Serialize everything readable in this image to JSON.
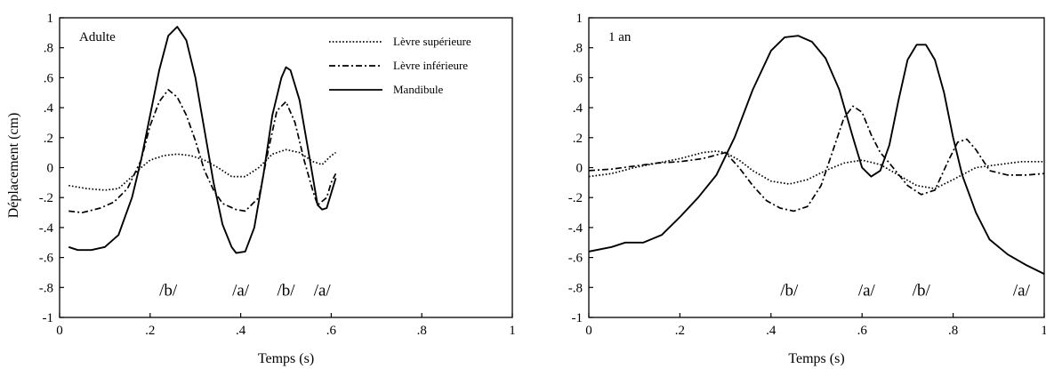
{
  "figure": {
    "ylabel": "Déplacement (cm)"
  },
  "chart_data": [
    {
      "type": "line",
      "panel_label": "Adulte",
      "xlabel": "Temps (s)",
      "ylabel": "Déplacement (cm)",
      "xlim": [
        0,
        1
      ],
      "ylim": [
        -1,
        1
      ],
      "x_ticks": [
        "0",
        ".2",
        ".4",
        ".6",
        ".8",
        "1"
      ],
      "y_ticks": [
        "1",
        ".8",
        ".6",
        ".4",
        ".2",
        "0",
        "-.2",
        "-.4",
        "-.6",
        "-.8",
        "-1"
      ],
      "legend": "top-right",
      "grid": false,
      "series": [
        {
          "name": "Lèvre supérieure",
          "style": "dotted",
          "points": [
            [
              0.02,
              -0.12
            ],
            [
              0.06,
              -0.14
            ],
            [
              0.1,
              -0.15
            ],
            [
              0.13,
              -0.14
            ],
            [
              0.16,
              -0.06
            ],
            [
              0.18,
              0.0
            ],
            [
              0.2,
              0.05
            ],
            [
              0.23,
              0.08
            ],
            [
              0.26,
              0.09
            ],
            [
              0.29,
              0.08
            ],
            [
              0.32,
              0.05
            ],
            [
              0.35,
              0.0
            ],
            [
              0.38,
              -0.06
            ],
            [
              0.41,
              -0.06
            ],
            [
              0.44,
              0.0
            ],
            [
              0.47,
              0.09
            ],
            [
              0.5,
              0.12
            ],
            [
              0.53,
              0.1
            ],
            [
              0.56,
              0.04
            ],
            [
              0.58,
              0.02
            ],
            [
              0.6,
              0.08
            ],
            [
              0.61,
              0.1
            ]
          ]
        },
        {
          "name": "Lèvre inférieure",
          "style": "dash-dot",
          "points": [
            [
              0.02,
              -0.29
            ],
            [
              0.05,
              -0.3
            ],
            [
              0.09,
              -0.27
            ],
            [
              0.12,
              -0.23
            ],
            [
              0.15,
              -0.14
            ],
            [
              0.18,
              0.05
            ],
            [
              0.2,
              0.28
            ],
            [
              0.22,
              0.44
            ],
            [
              0.24,
              0.52
            ],
            [
              0.26,
              0.47
            ],
            [
              0.28,
              0.35
            ],
            [
              0.3,
              0.18
            ],
            [
              0.32,
              -0.02
            ],
            [
              0.34,
              -0.15
            ],
            [
              0.36,
              -0.24
            ],
            [
              0.39,
              -0.28
            ],
            [
              0.41,
              -0.29
            ],
            [
              0.44,
              -0.2
            ],
            [
              0.46,
              0.1
            ],
            [
              0.48,
              0.38
            ],
            [
              0.5,
              0.44
            ],
            [
              0.52,
              0.3
            ],
            [
              0.54,
              0.05
            ],
            [
              0.56,
              -0.16
            ],
            [
              0.57,
              -0.25
            ],
            [
              0.59,
              -0.2
            ],
            [
              0.6,
              -0.1
            ],
            [
              0.61,
              -0.04
            ]
          ]
        },
        {
          "name": "Mandibule",
          "style": "solid",
          "points": [
            [
              0.02,
              -0.53
            ],
            [
              0.04,
              -0.55
            ],
            [
              0.07,
              -0.55
            ],
            [
              0.1,
              -0.53
            ],
            [
              0.13,
              -0.45
            ],
            [
              0.16,
              -0.2
            ],
            [
              0.18,
              0.05
            ],
            [
              0.2,
              0.35
            ],
            [
              0.22,
              0.65
            ],
            [
              0.24,
              0.88
            ],
            [
              0.26,
              0.94
            ],
            [
              0.28,
              0.85
            ],
            [
              0.3,
              0.6
            ],
            [
              0.32,
              0.25
            ],
            [
              0.34,
              -0.1
            ],
            [
              0.36,
              -0.38
            ],
            [
              0.38,
              -0.53
            ],
            [
              0.39,
              -0.57
            ],
            [
              0.41,
              -0.56
            ],
            [
              0.43,
              -0.4
            ],
            [
              0.45,
              -0.05
            ],
            [
              0.47,
              0.35
            ],
            [
              0.49,
              0.6
            ],
            [
              0.5,
              0.67
            ],
            [
              0.51,
              0.65
            ],
            [
              0.53,
              0.45
            ],
            [
              0.55,
              0.1
            ],
            [
              0.57,
              -0.25
            ],
            [
              0.58,
              -0.28
            ],
            [
              0.59,
              -0.27
            ],
            [
              0.61,
              -0.07
            ]
          ]
        }
      ],
      "annotations": [
        {
          "text": "/b/",
          "x": 0.24,
          "y": -0.82
        },
        {
          "text": "/a/",
          "x": 0.4,
          "y": -0.82
        },
        {
          "text": "/b/",
          "x": 0.5,
          "y": -0.82
        },
        {
          "text": "/a/",
          "x": 0.58,
          "y": -0.82
        }
      ]
    },
    {
      "type": "line",
      "panel_label": "1 an",
      "xlabel": "Temps (s)",
      "ylabel": "",
      "xlim": [
        0,
        1
      ],
      "ylim": [
        -1,
        1
      ],
      "x_ticks": [
        "0",
        ".2",
        ".4",
        ".6",
        ".8",
        "1"
      ],
      "y_ticks": [
        "1",
        ".8",
        ".6",
        ".4",
        ".2",
        "0",
        "-.2",
        "-.4",
        "-.6",
        "-.8",
        "-1"
      ],
      "grid": false,
      "series": [
        {
          "name": "Lèvre supérieure",
          "style": "dotted",
          "points": [
            [
              0.0,
              -0.06
            ],
            [
              0.05,
              -0.04
            ],
            [
              0.1,
              0.0
            ],
            [
              0.15,
              0.03
            ],
            [
              0.2,
              0.06
            ],
            [
              0.25,
              0.1
            ],
            [
              0.28,
              0.11
            ],
            [
              0.3,
              0.1
            ],
            [
              0.33,
              0.05
            ],
            [
              0.36,
              -0.02
            ],
            [
              0.4,
              -0.09
            ],
            [
              0.44,
              -0.11
            ],
            [
              0.48,
              -0.08
            ],
            [
              0.52,
              -0.02
            ],
            [
              0.56,
              0.03
            ],
            [
              0.6,
              0.05
            ],
            [
              0.64,
              0.02
            ],
            [
              0.68,
              -0.05
            ],
            [
              0.72,
              -0.12
            ],
            [
              0.76,
              -0.14
            ],
            [
              0.8,
              -0.08
            ],
            [
              0.85,
              0.0
            ],
            [
              0.9,
              0.02
            ],
            [
              0.95,
              0.04
            ],
            [
              1.0,
              0.04
            ]
          ]
        },
        {
          "name": "Lèvre inférieure",
          "style": "dash-dot",
          "points": [
            [
              0.0,
              -0.02
            ],
            [
              0.05,
              -0.01
            ],
            [
              0.1,
              0.01
            ],
            [
              0.15,
              0.03
            ],
            [
              0.2,
              0.04
            ],
            [
              0.25,
              0.06
            ],
            [
              0.3,
              0.1
            ],
            [
              0.33,
              0.0
            ],
            [
              0.36,
              -0.12
            ],
            [
              0.39,
              -0.22
            ],
            [
              0.42,
              -0.27
            ],
            [
              0.45,
              -0.29
            ],
            [
              0.48,
              -0.26
            ],
            [
              0.51,
              -0.12
            ],
            [
              0.54,
              0.15
            ],
            [
              0.56,
              0.33
            ],
            [
              0.58,
              0.41
            ],
            [
              0.6,
              0.37
            ],
            [
              0.62,
              0.22
            ],
            [
              0.64,
              0.1
            ],
            [
              0.66,
              0.03
            ],
            [
              0.7,
              -0.12
            ],
            [
              0.73,
              -0.18
            ],
            [
              0.76,
              -0.15
            ],
            [
              0.79,
              0.05
            ],
            [
              0.81,
              0.17
            ],
            [
              0.83,
              0.19
            ],
            [
              0.85,
              0.12
            ],
            [
              0.88,
              -0.02
            ],
            [
              0.92,
              -0.05
            ],
            [
              0.96,
              -0.05
            ],
            [
              1.0,
              -0.04
            ]
          ]
        },
        {
          "name": "Mandibule",
          "style": "solid",
          "points": [
            [
              0.0,
              -0.56
            ],
            [
              0.05,
              -0.53
            ],
            [
              0.08,
              -0.5
            ],
            [
              0.12,
              -0.5
            ],
            [
              0.16,
              -0.45
            ],
            [
              0.2,
              -0.33
            ],
            [
              0.24,
              -0.2
            ],
            [
              0.28,
              -0.05
            ],
            [
              0.32,
              0.2
            ],
            [
              0.36,
              0.52
            ],
            [
              0.4,
              0.78
            ],
            [
              0.43,
              0.87
            ],
            [
              0.46,
              0.88
            ],
            [
              0.49,
              0.84
            ],
            [
              0.52,
              0.73
            ],
            [
              0.55,
              0.52
            ],
            [
              0.58,
              0.2
            ],
            [
              0.6,
              0.0
            ],
            [
              0.62,
              -0.06
            ],
            [
              0.64,
              -0.02
            ],
            [
              0.66,
              0.15
            ],
            [
              0.68,
              0.45
            ],
            [
              0.7,
              0.72
            ],
            [
              0.72,
              0.82
            ],
            [
              0.74,
              0.82
            ],
            [
              0.76,
              0.72
            ],
            [
              0.78,
              0.5
            ],
            [
              0.8,
              0.2
            ],
            [
              0.82,
              -0.05
            ],
            [
              0.85,
              -0.3
            ],
            [
              0.88,
              -0.48
            ],
            [
              0.92,
              -0.58
            ],
            [
              0.96,
              -0.65
            ],
            [
              1.0,
              -0.71
            ]
          ]
        }
      ],
      "annotations": [
        {
          "text": "/b/",
          "x": 0.44,
          "y": -0.82
        },
        {
          "text": "/a/",
          "x": 0.61,
          "y": -0.82
        },
        {
          "text": "/b/",
          "x": 0.73,
          "y": -0.82
        },
        {
          "text": "/a/",
          "x": 0.95,
          "y": -0.82
        }
      ]
    }
  ]
}
